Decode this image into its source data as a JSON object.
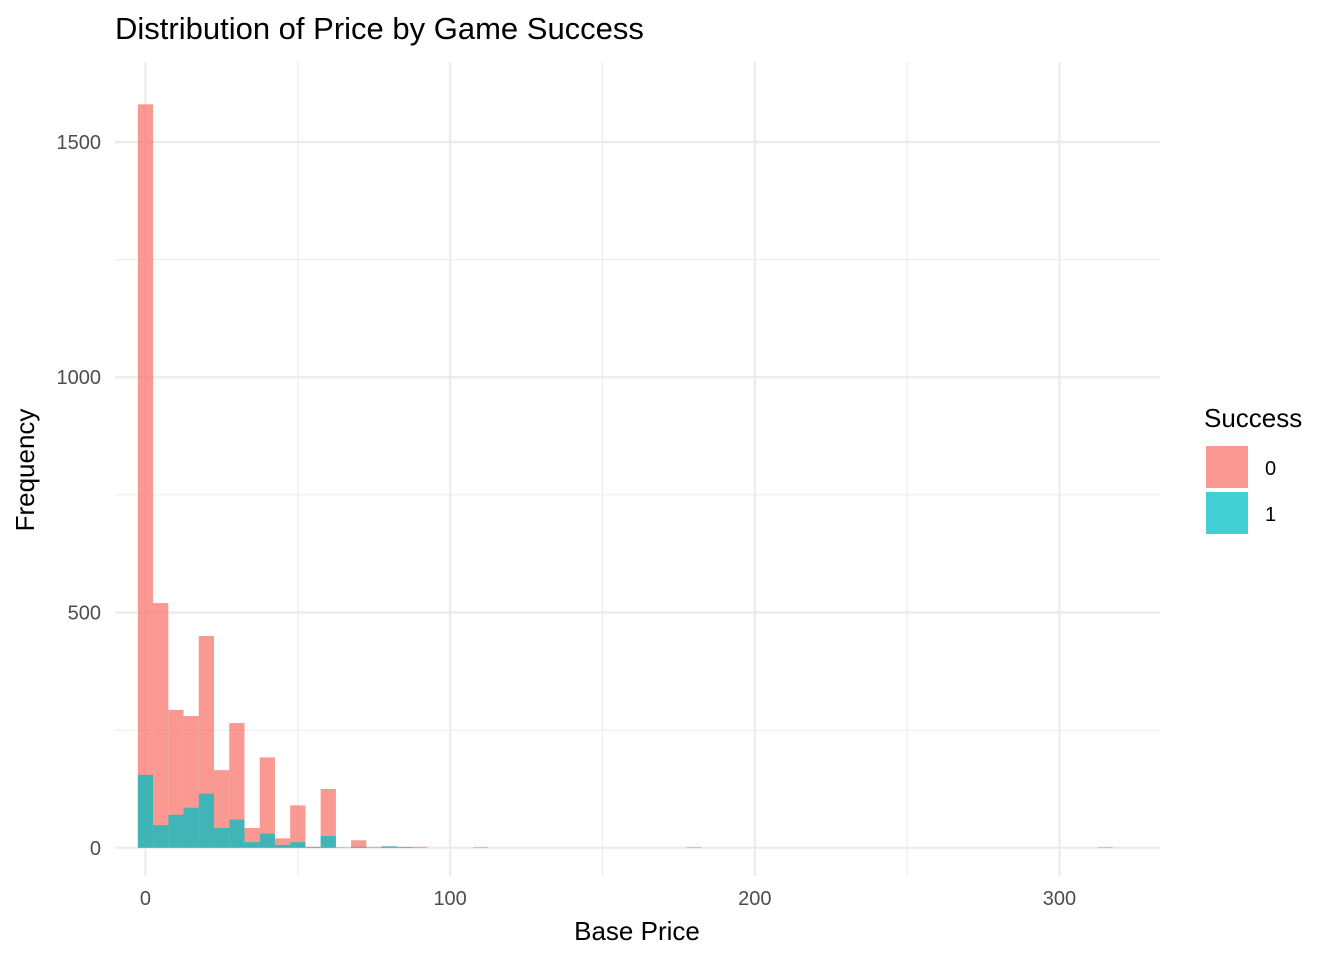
{
  "chart_data": {
    "type": "bar",
    "subtype": "overlapping-histogram",
    "title": "Distribution of Price by Game Success",
    "xlabel": "Base Price",
    "ylabel": "Frequency",
    "xlim": [
      -10,
      333
    ],
    "ylim": [
      -60,
      1670
    ],
    "xticks": [
      0,
      100,
      200,
      300
    ],
    "yticks": [
      0,
      500,
      1000,
      1500
    ],
    "grid": true,
    "legend": {
      "title": "Success",
      "position": "right"
    },
    "bin_width": 5,
    "series": [
      {
        "name": "0",
        "color": "#F8766D",
        "bins": [
          {
            "x0": -2.5,
            "value": 1580
          },
          {
            "x0": 2.5,
            "value": 520
          },
          {
            "x0": 7.5,
            "value": 293
          },
          {
            "x0": 12.5,
            "value": 280
          },
          {
            "x0": 17.5,
            "value": 450
          },
          {
            "x0": 22.5,
            "value": 165
          },
          {
            "x0": 27.5,
            "value": 265
          },
          {
            "x0": 32.5,
            "value": 42
          },
          {
            "x0": 37.5,
            "value": 192
          },
          {
            "x0": 42.5,
            "value": 20
          },
          {
            "x0": 47.5,
            "value": 90
          },
          {
            "x0": 52.5,
            "value": 2
          },
          {
            "x0": 57.5,
            "value": 125
          },
          {
            "x0": 62.5,
            "value": 1
          },
          {
            "x0": 67.5,
            "value": 16
          },
          {
            "x0": 72.5,
            "value": 2
          },
          {
            "x0": 77.5,
            "value": 3
          },
          {
            "x0": 82.5,
            "value": 2
          },
          {
            "x0": 87.5,
            "value": 2
          },
          {
            "x0": 107.5,
            "value": 1
          },
          {
            "x0": 177.5,
            "value": 1
          },
          {
            "x0": 312.5,
            "value": 1
          }
        ]
      },
      {
        "name": "1",
        "color": "#00BFC4",
        "bins": [
          {
            "x0": -2.5,
            "value": 155
          },
          {
            "x0": 2.5,
            "value": 48
          },
          {
            "x0": 7.5,
            "value": 70
          },
          {
            "x0": 12.5,
            "value": 85
          },
          {
            "x0": 17.5,
            "value": 115
          },
          {
            "x0": 22.5,
            "value": 42
          },
          {
            "x0": 27.5,
            "value": 60
          },
          {
            "x0": 32.5,
            "value": 12
          },
          {
            "x0": 37.5,
            "value": 30
          },
          {
            "x0": 42.5,
            "value": 6
          },
          {
            "x0": 47.5,
            "value": 12
          },
          {
            "x0": 52.5,
            "value": 1
          },
          {
            "x0": 57.5,
            "value": 25
          },
          {
            "x0": 67.5,
            "value": 2
          },
          {
            "x0": 77.5,
            "value": 3
          },
          {
            "x0": 82.5,
            "value": 1
          }
        ]
      }
    ]
  }
}
